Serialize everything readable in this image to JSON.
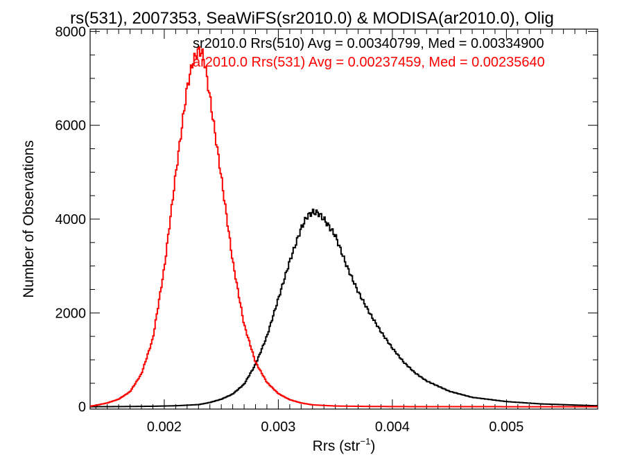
{
  "chart_data": {
    "type": "line",
    "title": "rs(531), 2007353, SeaWiFS(sr2010.0) & MODISA(ar2010.0), Olig",
    "xlabel": "Rrs (str",
    "xlabel_sup": "−1",
    "xlabel_end": ")",
    "ylabel": "Number of Observations",
    "xlim": [
      0.00135,
      0.0058
    ],
    "ylim": [
      -50,
      8050
    ],
    "xticks": [
      0.002,
      0.003,
      0.004,
      0.005
    ],
    "xtick_labels": [
      "0.002",
      "0.003",
      "0.004",
      "0.005"
    ],
    "yticks": [
      0,
      2000,
      4000,
      6000,
      8000
    ],
    "ytick_labels": [
      "0",
      "2000",
      "4000",
      "6000",
      "8000"
    ],
    "grid": false,
    "series": [
      {
        "name": "sr2010.0 Rrs(510) Avg = 0.00340799, Med = 0.00334900",
        "color": "#000000",
        "x": [
          0.00135,
          0.0015,
          0.0017,
          0.0019,
          0.0021,
          0.0023,
          0.0024,
          0.0025,
          0.0026,
          0.0027,
          0.0028,
          0.0029,
          0.003,
          0.0031,
          0.0032,
          0.00325,
          0.0033,
          0.00335,
          0.0034,
          0.0035,
          0.0036,
          0.0037,
          0.0038,
          0.0039,
          0.004,
          0.0041,
          0.0042,
          0.0043,
          0.0045,
          0.0047,
          0.005,
          0.0053,
          0.0058
        ],
        "y": [
          0,
          2,
          5,
          10,
          20,
          45,
          90,
          160,
          270,
          480,
          900,
          1500,
          2300,
          3100,
          3800,
          4050,
          4150,
          4130,
          4000,
          3650,
          3000,
          2450,
          2000,
          1600,
          1250,
          950,
          720,
          550,
          330,
          200,
          110,
          60,
          20
        ]
      },
      {
        "name": "ar2010.0 Rrs(531) Avg = 0.00237459, Med = 0.00235640",
        "color": "#ff0000",
        "x": [
          0.00135,
          0.0014,
          0.0015,
          0.0016,
          0.0017,
          0.0018,
          0.0019,
          0.002,
          0.0021,
          0.0022,
          0.00225,
          0.0023,
          0.00233,
          0.00235,
          0.0024,
          0.0025,
          0.0026,
          0.0027,
          0.0028,
          0.0029,
          0.003,
          0.0031,
          0.0032,
          0.0033,
          0.0035,
          0.0038,
          0.0042,
          0.0047,
          0.0058
        ],
        "y": [
          10,
          30,
          80,
          160,
          320,
          700,
          1450,
          2950,
          4950,
          6800,
          7350,
          7600,
          7550,
          7400,
          6600,
          4900,
          3100,
          1750,
          950,
          520,
          280,
          150,
          80,
          40,
          15,
          6,
          2,
          1,
          0
        ]
      }
    ]
  }
}
